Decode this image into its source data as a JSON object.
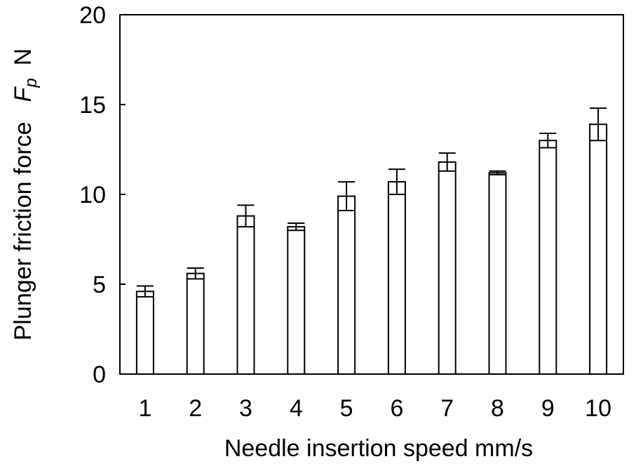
{
  "chart_data": {
    "type": "bar",
    "categories": [
      "1",
      "2",
      "3",
      "4",
      "5",
      "6",
      "7",
      "8",
      "9",
      "10"
    ],
    "values": [
      4.6,
      5.6,
      8.8,
      8.2,
      9.9,
      10.7,
      11.8,
      11.2,
      13.0,
      13.9
    ],
    "errors": [
      0.3,
      0.3,
      0.6,
      0.2,
      0.8,
      0.7,
      0.5,
      0.1,
      0.4,
      0.9
    ],
    "title": "",
    "xlabel": "Needle insertion speed  mm/s",
    "ylabel": {
      "prefix": "Plunger friction force",
      "symbol": "F",
      "subscript": "p",
      "unit": "N"
    },
    "ylim": [
      0,
      20
    ],
    "yticks": [
      "0",
      "5",
      "10",
      "15",
      "20"
    ],
    "grid": false,
    "legend": "none"
  }
}
